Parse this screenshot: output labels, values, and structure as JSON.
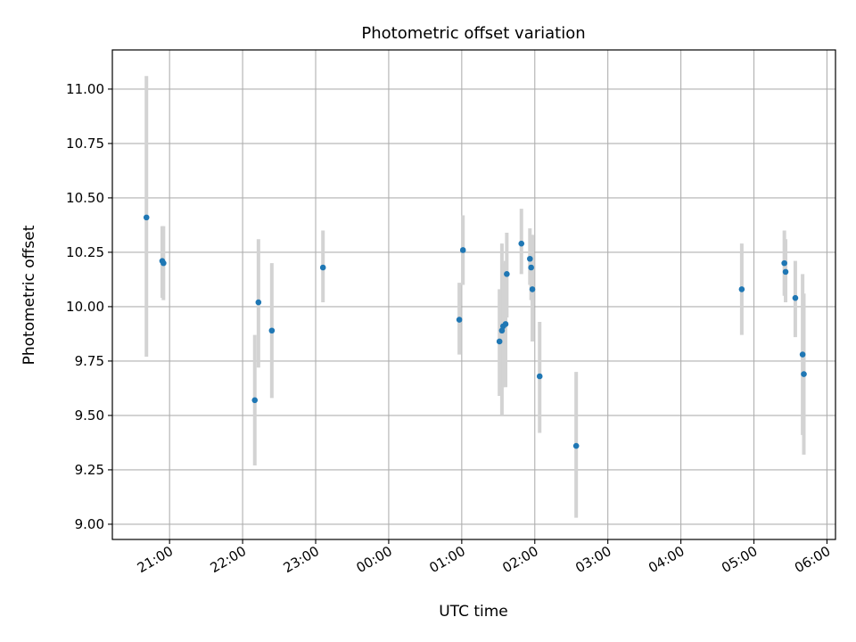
{
  "chart_data": {
    "type": "scatter",
    "title": "Photometric offset variation",
    "xlabel": "UTC time",
    "ylabel": "Photometric offset",
    "x_ticks": [
      "21:00",
      "22:00",
      "23:00",
      "00:00",
      "01:00",
      "02:00",
      "03:00",
      "04:00",
      "05:00",
      "06:00"
    ],
    "y_ticks": [
      "9.00",
      "9.25",
      "9.50",
      "9.75",
      "10.00",
      "10.25",
      "10.50",
      "10.75",
      "11.00"
    ],
    "xlim": [
      "20:13",
      "06:07"
    ],
    "ylim": [
      8.93,
      11.18
    ],
    "grid": true,
    "colors": {
      "marker": "#1f77b4",
      "errorbar": "#d3d3d3",
      "grid": "#b0b0b0"
    },
    "series": [
      {
        "points": [
          {
            "x": "20:41",
            "y": 10.41,
            "lo": 9.77,
            "hi": 11.06
          },
          {
            "x": "20:54",
            "y": 10.21,
            "lo": 10.04,
            "hi": 10.37
          },
          {
            "x": "20:55",
            "y": 10.2,
            "lo": 10.03,
            "hi": 10.37
          },
          {
            "x": "22:10",
            "y": 9.57,
            "lo": 9.27,
            "hi": 9.87
          },
          {
            "x": "22:13",
            "y": 10.02,
            "lo": 9.72,
            "hi": 10.31
          },
          {
            "x": "22:24",
            "y": 9.89,
            "lo": 9.58,
            "hi": 10.2
          },
          {
            "x": "23:06",
            "y": 10.18,
            "lo": 10.02,
            "hi": 10.35
          },
          {
            "x": "00:58",
            "y": 9.94,
            "lo": 9.78,
            "hi": 10.11
          },
          {
            "x": "01:01",
            "y": 10.26,
            "lo": 10.1,
            "hi": 10.42
          },
          {
            "x": "01:31",
            "y": 9.84,
            "lo": 9.59,
            "hi": 10.08
          },
          {
            "x": "01:33",
            "y": 9.89,
            "lo": 9.5,
            "hi": 10.29
          },
          {
            "x": "01:34",
            "y": 9.91,
            "lo": 9.63,
            "hi": 10.2
          },
          {
            "x": "01:36",
            "y": 9.92,
            "lo": 9.63,
            "hi": 10.21
          },
          {
            "x": "01:37",
            "y": 10.15,
            "lo": 9.95,
            "hi": 10.34
          },
          {
            "x": "01:49",
            "y": 10.29,
            "lo": 10.15,
            "hi": 10.45
          },
          {
            "x": "01:56",
            "y": 10.22,
            "lo": 10.1,
            "hi": 10.36
          },
          {
            "x": "01:57",
            "y": 10.18,
            "lo": 10.03,
            "hi": 10.33
          },
          {
            "x": "01:58",
            "y": 10.08,
            "lo": 9.84,
            "hi": 10.33
          },
          {
            "x": "02:04",
            "y": 9.68,
            "lo": 9.42,
            "hi": 9.93
          },
          {
            "x": "02:34",
            "y": 9.36,
            "lo": 9.03,
            "hi": 9.7
          },
          {
            "x": "04:50",
            "y": 10.08,
            "lo": 9.87,
            "hi": 10.29
          },
          {
            "x": "05:25",
            "y": 10.2,
            "lo": 10.05,
            "hi": 10.35
          },
          {
            "x": "05:26",
            "y": 10.16,
            "lo": 10.02,
            "hi": 10.31
          },
          {
            "x": "05:34",
            "y": 10.04,
            "lo": 9.86,
            "hi": 10.21
          },
          {
            "x": "05:40",
            "y": 9.78,
            "lo": 9.41,
            "hi": 10.15
          },
          {
            "x": "05:41",
            "y": 9.69,
            "lo": 9.32,
            "hi": 10.06
          }
        ]
      }
    ]
  }
}
